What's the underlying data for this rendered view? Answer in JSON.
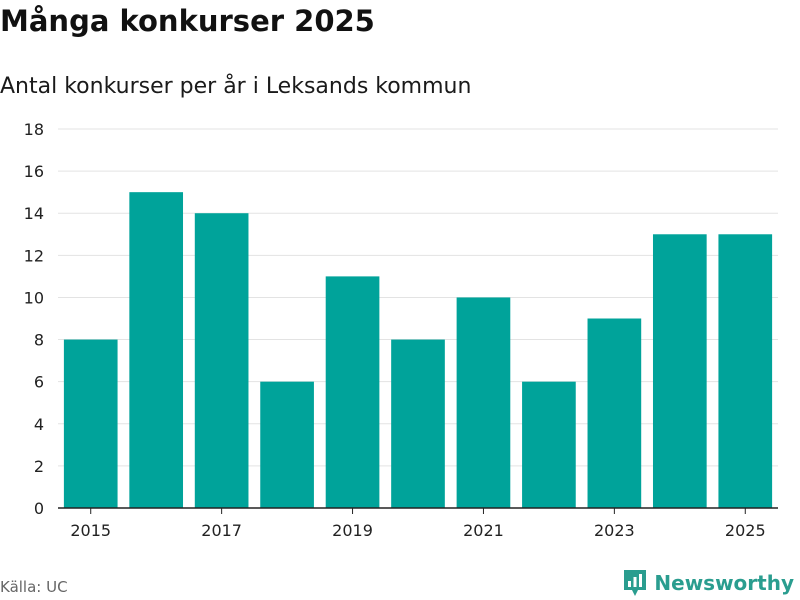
{
  "title": "Många konkurser 2025",
  "subtitle": "Antal konkurser per år i Leksands kommun",
  "source": "Källa: UC",
  "brand": "Newsworthy",
  "colors": {
    "bar": "#00a39a",
    "grid": "#e3e3e3",
    "axis": "#222222",
    "brand": "#2a9d8f"
  },
  "icons": {
    "brand_logo": "bar-chart-pin-icon"
  },
  "chart_data": {
    "type": "bar",
    "categories": [
      "2015",
      "2016",
      "2017",
      "2018",
      "2019",
      "2020",
      "2021",
      "2022",
      "2023",
      "2024",
      "2025"
    ],
    "values": [
      8,
      15,
      14,
      6,
      11,
      8,
      10,
      6,
      9,
      13,
      13
    ],
    "xtick_labels": [
      "2015",
      "2017",
      "2019",
      "2021",
      "2023",
      "2025"
    ],
    "yticks": [
      0,
      2,
      4,
      6,
      8,
      10,
      12,
      14,
      16,
      18
    ],
    "ylim": [
      0,
      18
    ],
    "grid": true,
    "legend": false,
    "xlabel": "",
    "ylabel": ""
  }
}
